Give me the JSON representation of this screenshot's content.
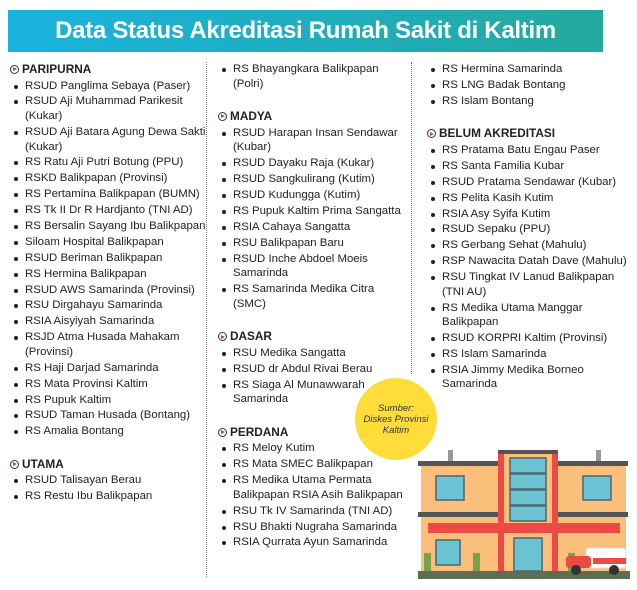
{
  "header": {
    "title": "Data Status Akreditasi Rumah Sakit di Kaltim"
  },
  "columns": [
    [
      {
        "title": "PARIPURNA",
        "items": [
          "RSUD Panglima Sebaya (Paser)",
          "RSUD Aji Muhammad Parikesit (Kukar)",
          "RSUD Aji Batara Agung Dewa Sakti (Kukar)",
          "RS Ratu Aji Putri Botung (PPU)",
          "RSKD Balikpapan (Provinsi)",
          "RS Pertamina Balikpapan (BUMN)",
          "RS Tk II Dr R Hardjanto (TNI AD)",
          "RS Bersalin Sayang Ibu Balikpapan",
          "Siloam Hospital Balikpapan",
          "RSUD Beriman Balikpapan",
          "RS Hermina Balikpapan",
          "RSUD AWS Samarinda (Provinsi)",
          "RSU Dirgahayu Samarinda",
          "RSIA Aisyiyah Samarinda",
          "RSJD Atma Husada Mahakam (Provinsi)",
          "RS Haji Darjad Samarinda",
          "RS Mata Provinsi Kaltim",
          "RS Pupuk Kaltim",
          "RSUD Taman Husada (Bontang)",
          "RS Amalia Bontang"
        ]
      },
      {
        "title": "UTAMA",
        "items": [
          "RSUD Talisayan Berau",
          "RS Restu Ibu Balikpapan"
        ]
      }
    ],
    [
      {
        "title": "",
        "items": [
          "RS Bhayangkara Balikpapan (Polri)"
        ]
      },
      {
        "title": "MADYA",
        "items": [
          "RSUD Harapan Insan Sendawar (Kubar)",
          "RSUD Dayaku Raja (Kukar)",
          "RSUD Sangkulirang (Kutim)",
          "RSUD Kudungga (Kutim)",
          "RS Pupuk Kaltim Prima Sangatta",
          "RSIA Cahaya Sangatta",
          "RSU Balikpapan Baru",
          "RSUD Inche Abdoel Moeis Samarinda",
          "RS Samarinda Medika Citra (SMC)"
        ]
      },
      {
        "title": "DASAR",
        "items": [
          "RSU Medika Sangatta",
          "RSUD dr Abdul Rivai Berau",
          "RS Siaga Al Munawwarah Samarinda"
        ]
      },
      {
        "title": "PERDANA",
        "items": [
          "RS Meloy Kutim",
          "RS Mata SMEC Balikpapan",
          "RS Medika Utama Permata Balikpapan RSIA Asih Balikpapan",
          "RSU Tk IV Samarinda (TNI AD)",
          "RSU Bhakti Nugraha Samarinda",
          "RSIA Qurrata Ayun Samarinda"
        ]
      }
    ],
    [
      {
        "title": "",
        "items": [
          "RS Hermina Samarinda",
          "RS LNG Badak Bontang",
          "RS Islam Bontang"
        ]
      },
      {
        "title": "BELUM AKREDITASI",
        "items": [
          "RS Pratama Batu Engau Paser",
          "RS Santa Familia Kubar",
          "RSUD Pratama Sendawar (Kubar)",
          "RS Pelita Kasih Kutim",
          "RSIA Asy Syifa Kutim",
          "RSUD Sepaku (PPU)",
          "RS Gerbang Sehat (Mahulu)",
          "RSP Nawacita Datah Dave (Mahulu)",
          "RSU Tingkat IV Lanud Balikpapan (TNI AU)",
          "RS Medika Utama Manggar Balikpapan",
          "RSUD KORPRI Kaltim (Provinsi)",
          "RS Islam Samarinda",
          "RSIA Jimmy Medika Borneo Samarinda"
        ]
      }
    ]
  ],
  "source": {
    "label": "Sumber:",
    "line1": "Diskes Provinsi",
    "line2": "Kaltim"
  },
  "colors": {
    "header_start": "#1ab3df",
    "header_end": "#23a99e",
    "badge": "#fedc3a",
    "section_icon": "#e53b2c"
  },
  "icons": {
    "section": "play-circle-icon",
    "illustration": "hospital-building-ambulance"
  }
}
